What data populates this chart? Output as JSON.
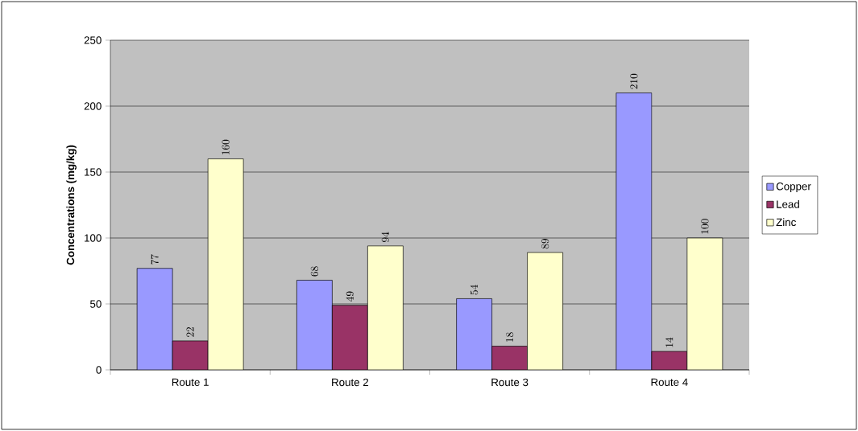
{
  "chart_data": {
    "type": "bar",
    "ylabel": "Concentrations (mg/kg)",
    "categories": [
      "Route 1",
      "Route 2",
      "Route 3",
      "Route 4"
    ],
    "series": [
      {
        "name": "Copper",
        "color": "#9999ff",
        "values": [
          77,
          68,
          54,
          210
        ]
      },
      {
        "name": "Lead",
        "color": "#993366",
        "values": [
          22,
          49,
          18,
          14
        ]
      },
      {
        "name": "Zinc",
        "color": "#ffffcc",
        "values": [
          160,
          94,
          89,
          100
        ]
      }
    ],
    "ylim": [
      0,
      250
    ],
    "yticks": [
      0,
      50,
      100,
      150,
      200,
      250
    ],
    "grid": "y",
    "legend": "right",
    "data_labels": true
  }
}
